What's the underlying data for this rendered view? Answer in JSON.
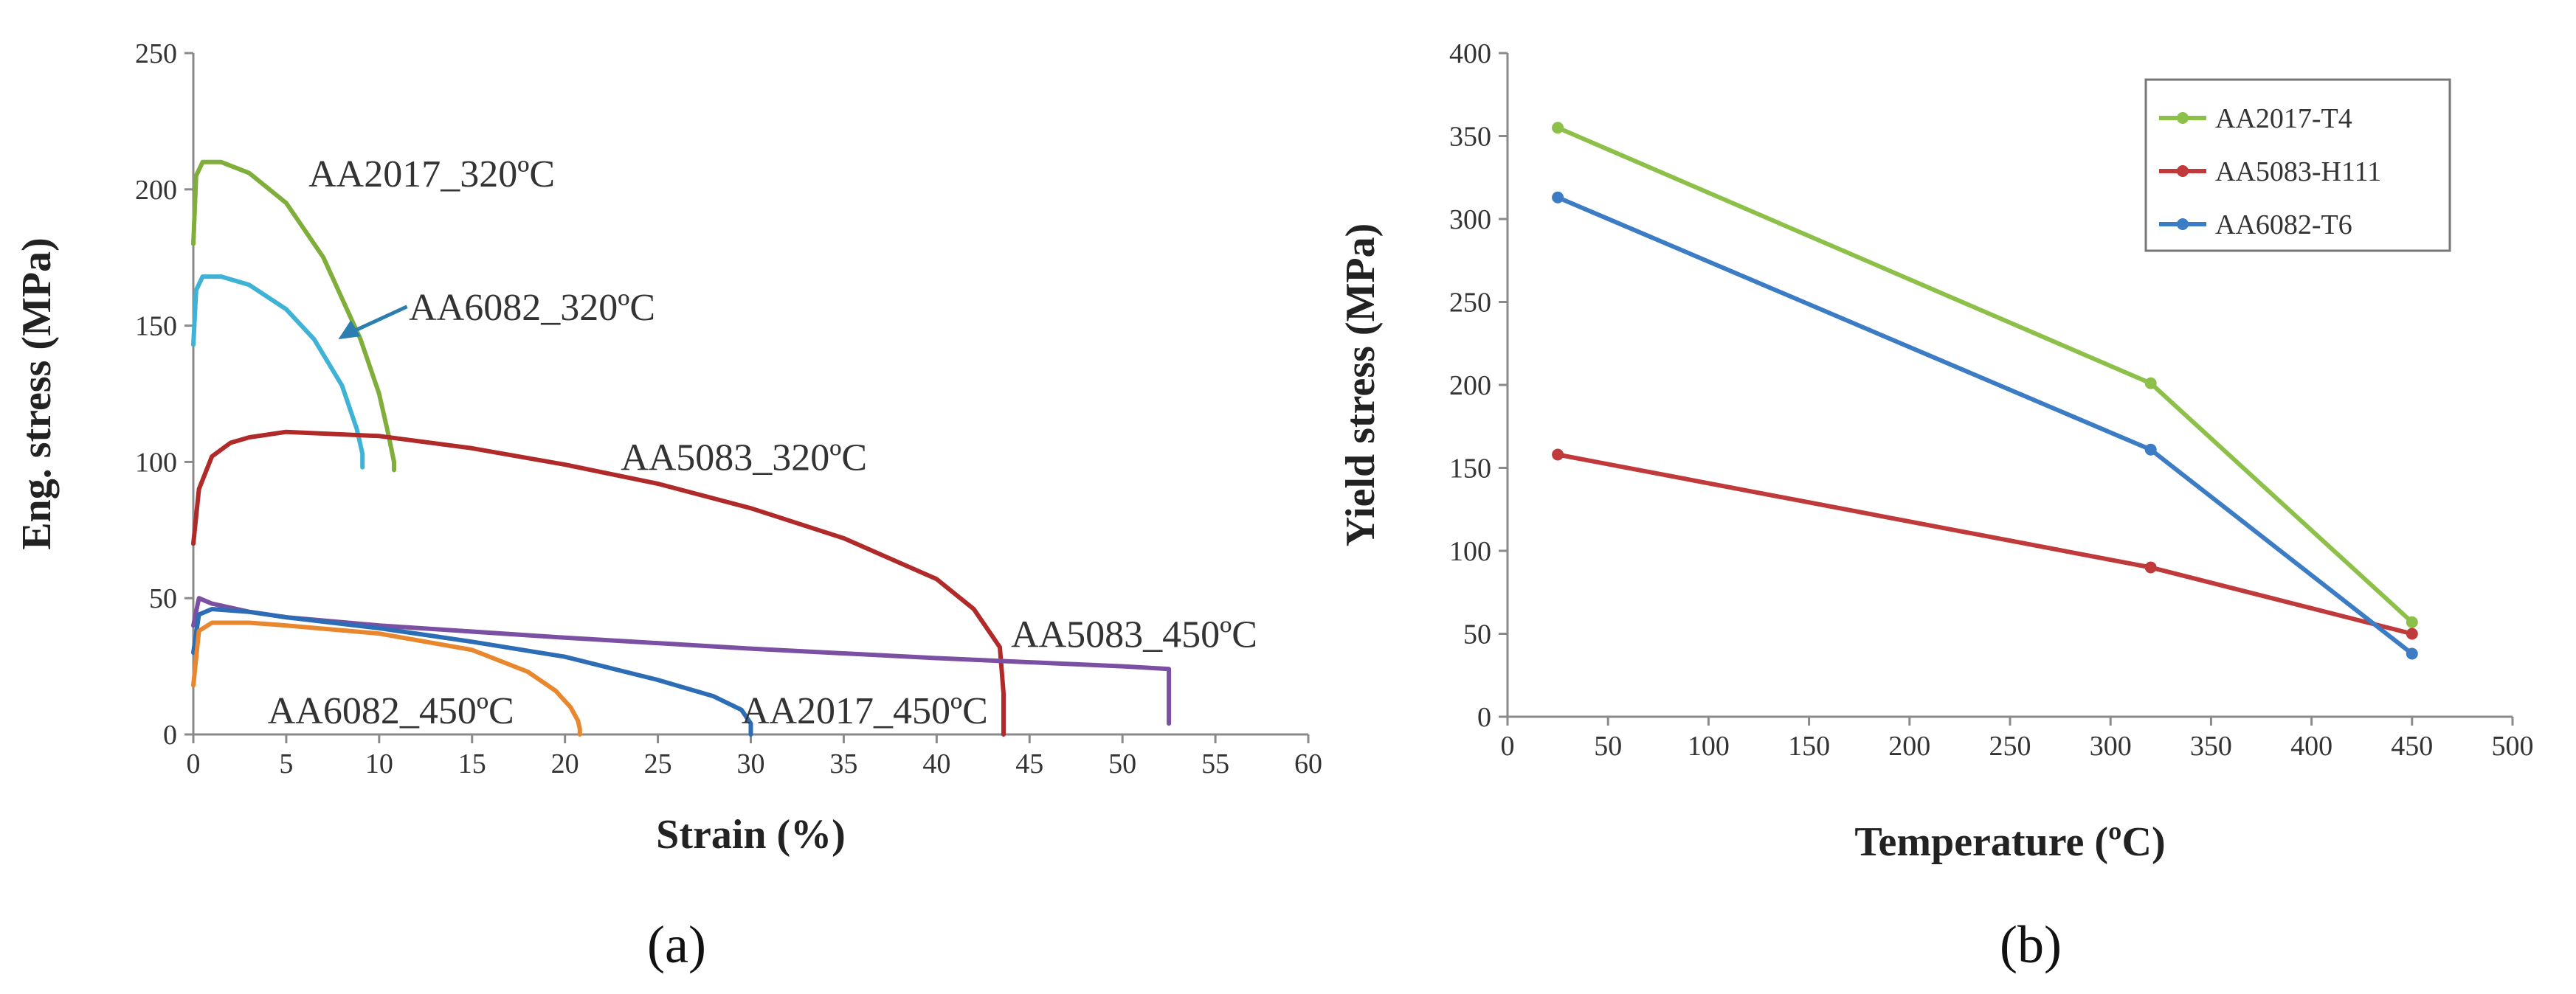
{
  "captions": {
    "a": "(a)",
    "b": "(b)"
  },
  "chart_data": [
    {
      "type": "line",
      "panel": "a",
      "xlabel": "Strain (%)",
      "ylabel": "Eng. stress (MPa)",
      "xlim": [
        0,
        60
      ],
      "ylim": [
        0,
        250
      ],
      "xticks": [
        0,
        5,
        10,
        15,
        20,
        25,
        30,
        35,
        40,
        45,
        50,
        55,
        60
      ],
      "yticks": [
        0,
        50,
        100,
        150,
        200,
        250
      ],
      "grid": false,
      "series": [
        {
          "name": "AA2017_320ºC",
          "color": "#7fae3a",
          "x": [
            0,
            0.15,
            0.5,
            1.5,
            3,
            5,
            7,
            9,
            10,
            10.5,
            10.8,
            10.8
          ],
          "y": [
            180,
            205,
            210,
            210,
            206,
            195,
            175,
            145,
            125,
            110,
            100,
            97
          ]
        },
        {
          "name": "AA6082_320ºC",
          "color": "#3fb3d6",
          "x": [
            0,
            0.15,
            0.5,
            1.5,
            3,
            5,
            6.5,
            8,
            8.8,
            9.1,
            9.1
          ],
          "y": [
            143,
            163,
            168,
            168,
            165,
            156,
            145,
            128,
            112,
            103,
            98
          ]
        },
        {
          "name": "AA5083_320ºC",
          "color": "#b02a2a",
          "x": [
            0,
            0.3,
            1,
            2,
            3,
            5,
            10,
            15,
            20,
            25,
            30,
            35,
            40,
            42,
            43.4,
            43.6,
            43.6
          ],
          "y": [
            70,
            90,
            102,
            107,
            109,
            111,
            109.5,
            105,
            99,
            92,
            83,
            72,
            57,
            46,
            32,
            15,
            0
          ]
        },
        {
          "name": "AA5083_450ºC",
          "color": "#7b4fa1",
          "x": [
            0,
            0.3,
            1,
            3,
            5,
            10,
            20,
            30,
            40,
            45,
            50,
            52.5,
            52.5
          ],
          "y": [
            40,
            50,
            48,
            45,
            43,
            40,
            35.5,
            31.5,
            28,
            26.5,
            25,
            24,
            4
          ]
        },
        {
          "name": "AA2017_450ºC",
          "color": "#2d6db5",
          "x": [
            0,
            0.3,
            1,
            3,
            5,
            10,
            15,
            20,
            25,
            28,
            29.5,
            30,
            30
          ],
          "y": [
            30,
            44,
            46,
            45,
            43,
            39,
            34,
            28.5,
            20,
            14,
            9,
            4,
            0
          ]
        },
        {
          "name": "AA6082_450ºC",
          "color": "#e8872e",
          "x": [
            0,
            0.3,
            1,
            3,
            5,
            10,
            15,
            18,
            19.5,
            20.3,
            20.7,
            20.8,
            20.8
          ],
          "y": [
            18,
            38,
            41,
            41,
            40,
            37,
            31,
            23,
            16,
            10,
            5,
            2,
            0
          ]
        }
      ],
      "annotations": [
        {
          "text": "AA2017_320ºC",
          "series": 0,
          "at": [
            6.2,
            201
          ]
        },
        {
          "text": "AA6082_320ºC",
          "series": 1,
          "at": [
            11.6,
            152
          ]
        },
        {
          "text": "AA5083_320ºC",
          "series": 2,
          "at": [
            23,
            97
          ]
        },
        {
          "text": "AA5083_450ºC",
          "series": 3,
          "at": [
            44,
            32
          ]
        },
        {
          "text": "AA2017_450ºC",
          "series": 4,
          "at": [
            29.5,
            4
          ]
        },
        {
          "text": "AA6082_450ºC",
          "series": 5,
          "at": [
            4,
            4
          ]
        }
      ]
    },
    {
      "type": "line",
      "panel": "b",
      "xlabel": "Temperature (ºC)",
      "ylabel": "Yield stress (MPa)",
      "xlim": [
        0,
        500
      ],
      "ylim": [
        0,
        400
      ],
      "xticks": [
        0,
        50,
        100,
        150,
        200,
        250,
        300,
        350,
        400,
        450,
        500
      ],
      "yticks": [
        0,
        50,
        100,
        150,
        200,
        250,
        300,
        350,
        400
      ],
      "grid": false,
      "legend": "top-right",
      "series": [
        {
          "name": "AA2017-T4",
          "color": "#8dc049",
          "x": [
            25,
            320,
            450
          ],
          "y": [
            355,
            201,
            57
          ]
        },
        {
          "name": "AA5083-H111",
          "color": "#c0393b",
          "x": [
            25,
            320,
            450
          ],
          "y": [
            158,
            90,
            50
          ]
        },
        {
          "name": "AA6082-T6",
          "color": "#3b7cc4",
          "x": [
            25,
            320,
            450
          ],
          "y": [
            313,
            161,
            38
          ]
        }
      ]
    }
  ]
}
